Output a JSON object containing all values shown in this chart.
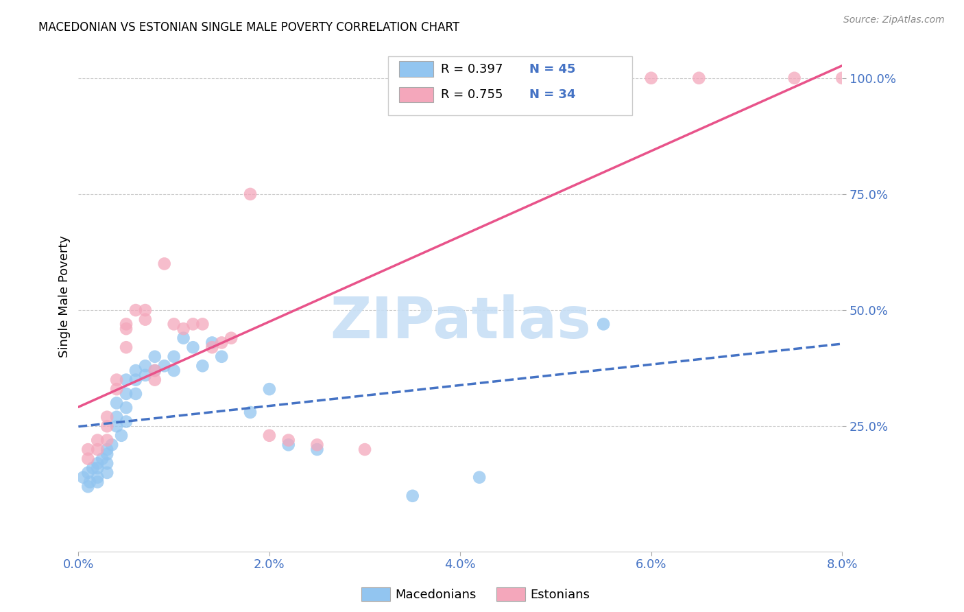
{
  "title": "MACEDONIAN VS ESTONIAN SINGLE MALE POVERTY CORRELATION CHART",
  "source": "Source: ZipAtlas.com",
  "ylabel": "Single Male Poverty",
  "ytick_labels": [
    "100.0%",
    "75.0%",
    "50.0%",
    "25.0%"
  ],
  "ytick_values": [
    1.0,
    0.75,
    0.5,
    0.25
  ],
  "xlim": [
    0.0,
    0.08
  ],
  "ylim": [
    -0.02,
    1.08
  ],
  "xtick_positions": [
    0.0,
    0.02,
    0.04,
    0.06,
    0.08
  ],
  "xtick_labels": [
    "0.0%",
    "2.0%",
    "4.0%",
    "6.0%",
    "8.0%"
  ],
  "legend_mac_r": "R = 0.397",
  "legend_mac_n": "N = 45",
  "legend_est_r": "R = 0.755",
  "legend_est_n": "N = 34",
  "color_macedonian": "#92c5f0",
  "color_estonian": "#f4a7bb",
  "line_color_macedonian": "#4472c4",
  "line_color_estonian": "#e8538a",
  "watermark_text": "ZIPatlas",
  "watermark_color": "#c8dff5",
  "label_macedonians": "Macedonians",
  "label_estonians": "Estonians",
  "mac_x": [
    0.0005,
    0.001,
    0.001,
    0.0012,
    0.0015,
    0.002,
    0.002,
    0.002,
    0.002,
    0.0025,
    0.003,
    0.003,
    0.003,
    0.003,
    0.0035,
    0.004,
    0.004,
    0.004,
    0.0045,
    0.005,
    0.005,
    0.005,
    0.005,
    0.006,
    0.006,
    0.006,
    0.007,
    0.007,
    0.008,
    0.008,
    0.009,
    0.01,
    0.01,
    0.011,
    0.012,
    0.013,
    0.014,
    0.015,
    0.018,
    0.02,
    0.022,
    0.025,
    0.035,
    0.042,
    0.055
  ],
  "mac_y": [
    0.14,
    0.12,
    0.15,
    0.13,
    0.16,
    0.17,
    0.16,
    0.14,
    0.13,
    0.18,
    0.2,
    0.19,
    0.17,
    0.15,
    0.21,
    0.3,
    0.27,
    0.25,
    0.23,
    0.35,
    0.32,
    0.29,
    0.26,
    0.37,
    0.35,
    0.32,
    0.38,
    0.36,
    0.4,
    0.37,
    0.38,
    0.4,
    0.37,
    0.44,
    0.42,
    0.38,
    0.43,
    0.4,
    0.28,
    0.33,
    0.21,
    0.2,
    0.1,
    0.14,
    0.47
  ],
  "est_x": [
    0.001,
    0.001,
    0.002,
    0.002,
    0.003,
    0.003,
    0.003,
    0.004,
    0.004,
    0.005,
    0.005,
    0.005,
    0.006,
    0.007,
    0.007,
    0.008,
    0.008,
    0.009,
    0.01,
    0.011,
    0.012,
    0.013,
    0.014,
    0.015,
    0.016,
    0.018,
    0.02,
    0.022,
    0.025,
    0.03,
    0.06,
    0.065,
    0.075,
    0.08
  ],
  "est_y": [
    0.2,
    0.18,
    0.22,
    0.2,
    0.27,
    0.25,
    0.22,
    0.35,
    0.33,
    0.47,
    0.46,
    0.42,
    0.5,
    0.5,
    0.48,
    0.37,
    0.35,
    0.6,
    0.47,
    0.46,
    0.47,
    0.47,
    0.42,
    0.43,
    0.44,
    0.75,
    0.23,
    0.22,
    0.21,
    0.2,
    1.0,
    1.0,
    1.0,
    1.0
  ]
}
